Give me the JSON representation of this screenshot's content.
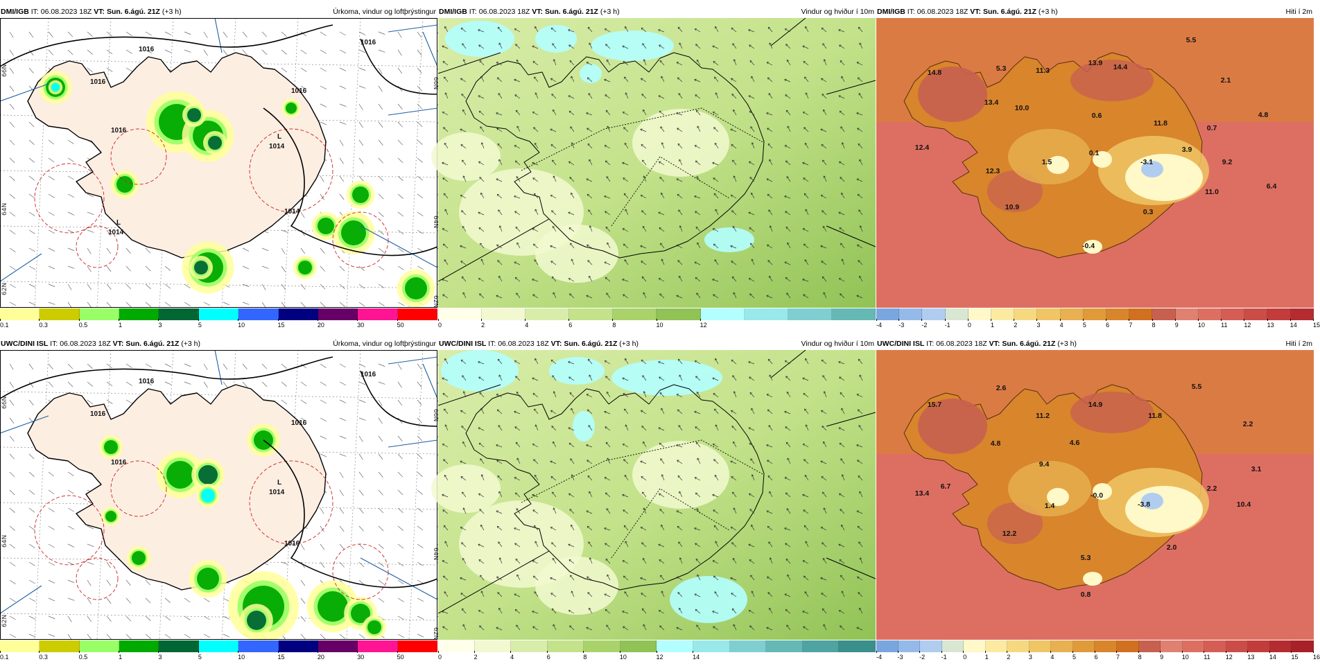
{
  "panels": [
    {
      "id": "p0",
      "kind": "precip",
      "source": "DMI/IGB",
      "it_label": "IT:",
      "it": "06.08.2023 18Z",
      "vt_label": "VT:",
      "vt": "Sun. 6.ágú. 21Z",
      "lead": "(+3 h)",
      "field": "Úrkoma, vindur og loftþrýstingur",
      "lat_labels": [
        "66N",
        "64N",
        "62N"
      ],
      "isobar_labels": [
        "1016",
        "1016",
        "1016",
        "1016",
        "1016",
        "1014"
      ],
      "lows": [
        {
          "text": "L",
          "value": "1014"
        },
        {
          "text": "L",
          "value": "1014"
        }
      ],
      "colorbar": {
        "colors": [
          "#ffff99",
          "#cccc00",
          "#99ff66",
          "#00aa00",
          "#006633",
          "#00ffff",
          "#3366ff",
          "#000080",
          "#660066",
          "#ff1493",
          "#ff0000"
        ],
        "ticks": [
          "0.1",
          "0.3",
          "0.5",
          "1",
          "3",
          "5",
          "10",
          "15",
          "20",
          "30",
          "50"
        ]
      }
    },
    {
      "id": "p1",
      "kind": "wind",
      "source": "DMI/IGB",
      "it_label": "IT:",
      "it": "06.08.2023 18Z",
      "vt_label": "VT:",
      "vt": "Sun. 6.ágú. 21Z",
      "lead": "(+3 h)",
      "field": "Vindur og hviður í 10m",
      "colorbar": {
        "colors": [
          "#ffffea",
          "#f2f9d0",
          "#d9edaa",
          "#c3e28a",
          "#a9d36a",
          "#90c255",
          "#b3ffff",
          "#99e8ea",
          "#7fcfd1",
          "#66b8b5"
        ],
        "ticks": [
          "0",
          "2",
          "4",
          "6",
          "8",
          "10",
          "12"
        ]
      }
    },
    {
      "id": "p2",
      "kind": "temp",
      "source": "DMI/IGB",
      "it_label": "IT:",
      "it": "06.08.2023 18Z",
      "vt_label": "VT:",
      "vt": "Sun. 6.ágú. 21Z",
      "lead": "(+3 h)",
      "field": "Hiti í 2m",
      "temps": [
        {
          "v": "14.8"
        },
        {
          "v": "5.3"
        },
        {
          "v": "11.3"
        },
        {
          "v": "13.9"
        },
        {
          "v": "14.4"
        },
        {
          "v": "5.5"
        },
        {
          "v": "13.4"
        },
        {
          "v": "10.0"
        },
        {
          "v": "0.6"
        },
        {
          "v": "2.1"
        },
        {
          "v": "4.8"
        },
        {
          "v": "11.8"
        },
        {
          "v": "0.7"
        },
        {
          "v": "12.4"
        },
        {
          "v": "1.5"
        },
        {
          "v": "0.1"
        },
        {
          "v": "-3.1"
        },
        {
          "v": "3.9"
        },
        {
          "v": "9.2"
        },
        {
          "v": "12.3"
        },
        {
          "v": "11.0"
        },
        {
          "v": "6.4"
        },
        {
          "v": "10.9"
        },
        {
          "v": "0.3"
        },
        {
          "v": "-0.4"
        }
      ],
      "colorbar": {
        "colors": [
          "#7aa6e0",
          "#95baea",
          "#b0cdf0",
          "#d8e6d2",
          "#fff8c8",
          "#fbeaa0",
          "#f6d880",
          "#f0c565",
          "#e8b050",
          "#e09a3a",
          "#d8852c",
          "#d07020",
          "#c86050",
          "#e08070",
          "#dd6f62",
          "#d45e55",
          "#cb4d48",
          "#c23c3c",
          "#b42c30"
        ],
        "ticks": [
          "-4",
          "-3",
          "-2",
          "-1",
          "0",
          "1",
          "2",
          "3",
          "4",
          "5",
          "6",
          "7",
          "8",
          "9",
          "10",
          "11",
          "12",
          "13",
          "14",
          "15"
        ]
      }
    },
    {
      "id": "p3",
      "kind": "precip",
      "source": "UWC/DINI ISL",
      "it_label": "IT:",
      "it": "06.08.2023 18Z",
      "vt_label": "VT:",
      "vt": "Sun. 6.ágú. 21Z",
      "lead": "(+3 h)",
      "field": "Úrkoma, vindur og loftþrýstingur",
      "lat_labels": [
        "66N",
        "64N",
        "62N"
      ],
      "isobar_labels": [
        "1016",
        "1016",
        "1016",
        "1016",
        "1016",
        "1016"
      ],
      "lows": [
        {
          "text": "L",
          "value": "1014"
        }
      ],
      "colorbar": {
        "colors": [
          "#ffff99",
          "#cccc00",
          "#99ff66",
          "#00aa00",
          "#006633",
          "#00ffff",
          "#3366ff",
          "#000080",
          "#660066",
          "#ff1493",
          "#ff0000"
        ],
        "ticks": [
          "0.1",
          "0.3",
          "0.5",
          "1",
          "3",
          "5",
          "10",
          "15",
          "20",
          "30",
          "50"
        ]
      }
    },
    {
      "id": "p4",
      "kind": "wind",
      "source": "UWC/DINI ISL",
      "it_label": "IT:",
      "it": "06.08.2023 18Z",
      "vt_label": "VT:",
      "vt": "Sun. 6.ágú. 21Z",
      "lead": "(+3 h)",
      "field": "Vindur og hviður í 10m",
      "colorbar": {
        "colors": [
          "#ffffea",
          "#f2f9d0",
          "#d9edaa",
          "#c3e28a",
          "#a9d36a",
          "#90c255",
          "#b3ffff",
          "#99e8ea",
          "#7fcfd1",
          "#66b8b5",
          "#4fa3a0",
          "#3a8f8b"
        ],
        "ticks": [
          "0",
          "2",
          "4",
          "6",
          "8",
          "10",
          "12",
          "14"
        ]
      }
    },
    {
      "id": "p5",
      "kind": "temp",
      "source": "UWC/DINI ISL",
      "it_label": "IT:",
      "it": "06.08.2023 18Z",
      "vt_label": "VT:",
      "vt": "Sun. 6.ágú. 21Z",
      "lead": "(+3 h)",
      "field": "Hiti í 2m",
      "temps": [
        {
          "v": "15.7"
        },
        {
          "v": "2.6"
        },
        {
          "v": "11.2"
        },
        {
          "v": "14.9"
        },
        {
          "v": "11.8"
        },
        {
          "v": "5.5"
        },
        {
          "v": "4.8"
        },
        {
          "v": "4.6"
        },
        {
          "v": "9.4"
        },
        {
          "v": "2.2"
        },
        {
          "v": "6.7"
        },
        {
          "v": "3.1"
        },
        {
          "v": "13.4"
        },
        {
          "v": "1.4"
        },
        {
          "v": "-0.0"
        },
        {
          "v": "-3.8"
        },
        {
          "v": "2.2"
        },
        {
          "v": "10.4"
        },
        {
          "v": "12.2"
        },
        {
          "v": "2.0"
        },
        {
          "v": "5.3"
        },
        {
          "v": "0.8"
        }
      ],
      "colorbar": {
        "colors": [
          "#7aa6e0",
          "#95baea",
          "#b0cdf0",
          "#d8e6d2",
          "#fff8c8",
          "#fbeaa0",
          "#f6d880",
          "#f0c565",
          "#e8b050",
          "#e09a3a",
          "#d8852c",
          "#d07020",
          "#c86050",
          "#e08070",
          "#dd6f62",
          "#d45e55",
          "#cb4d48",
          "#c23c3c",
          "#b42c30",
          "#a82028"
        ],
        "ticks": [
          "-4",
          "-3",
          "-2",
          "-1",
          "0",
          "1",
          "2",
          "3",
          "4",
          "5",
          "6",
          "7",
          "8",
          "9",
          "10",
          "11",
          "12",
          "13",
          "14",
          "15",
          "16"
        ]
      }
    }
  ]
}
